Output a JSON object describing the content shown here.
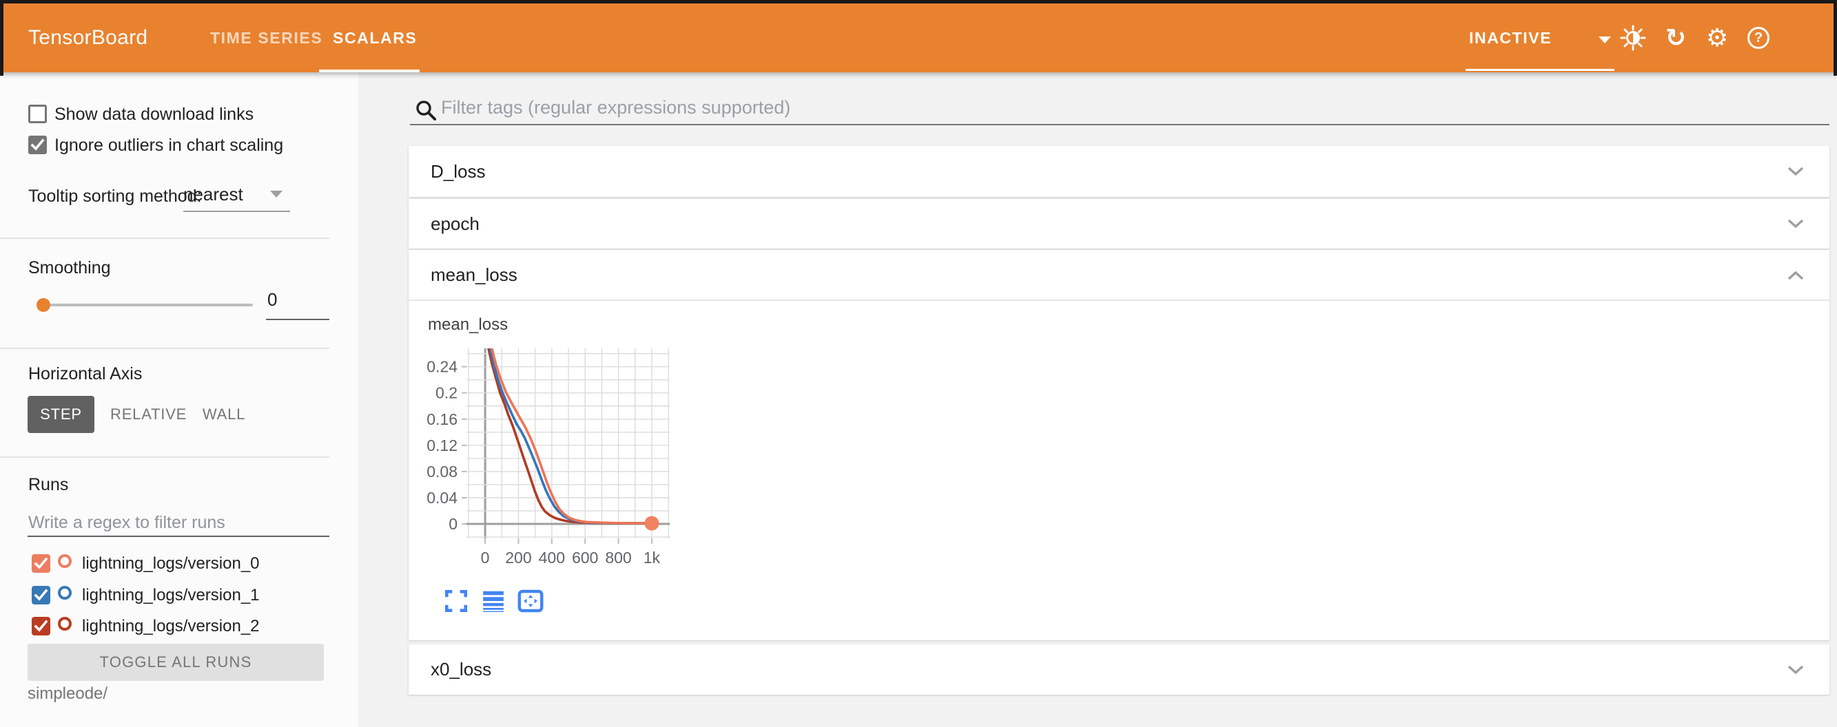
{
  "header": {
    "title": "TensorBoard",
    "tabs": [
      {
        "label": "TIME SERIES",
        "active": false
      },
      {
        "label": "SCALARS",
        "active": true
      }
    ],
    "run_status": "INACTIVE",
    "accent_color": "#e8822f",
    "icons": {
      "brightness": "half-filled-sun",
      "refresh": "circular-arrow",
      "settings": "gear",
      "settings_glyph": "⚙",
      "refresh_glyph": "↻",
      "help": "question-mark-circle",
      "help_glyph": "?"
    }
  },
  "sidebar": {
    "checkboxes": [
      {
        "label": "Show data download links",
        "checked": false
      },
      {
        "label": "Ignore outliers in chart scaling",
        "checked": true
      }
    ],
    "tooltip_sorting": {
      "label": "Tooltip sorting method:",
      "value": "nearest"
    },
    "smoothing": {
      "label": "Smoothing",
      "value": "0"
    },
    "horizontal_axis": {
      "label": "Horizontal Axis",
      "options": [
        "STEP",
        "RELATIVE",
        "WALL"
      ],
      "selected": "STEP"
    },
    "runs": {
      "label": "Runs",
      "filter_placeholder": "Write a regex to filter runs",
      "items": [
        {
          "label": "lightning_logs/version_0",
          "color": "#ee7d60",
          "checked": true
        },
        {
          "label": "lightning_logs/version_1",
          "color": "#3779b5",
          "checked": true
        },
        {
          "label": "lightning_logs/version_2",
          "color": "#b93d22",
          "checked": true
        }
      ],
      "toggle_all_label": "TOGGLE ALL RUNS",
      "footer": "simpleode/"
    }
  },
  "main": {
    "filter_placeholder": "Filter tags (regular expressions supported)",
    "sections": [
      {
        "label": "D_loss",
        "expanded": false
      },
      {
        "label": "epoch",
        "expanded": false
      },
      {
        "label": "mean_loss",
        "expanded": true
      },
      {
        "label": "x0_loss",
        "expanded": false
      }
    ]
  },
  "chart_data": {
    "type": "line",
    "title": "mean_loss",
    "x_axis": "step",
    "xlim": [
      -112,
      1108
    ],
    "ylim": [
      -0.022,
      0.268
    ],
    "x_grid_step": 100,
    "y_grid_step": 0.02,
    "grid": true,
    "legend": "none",
    "x_ticks": [
      {
        "v": 0,
        "label": "0"
      },
      {
        "v": 200,
        "label": "200"
      },
      {
        "v": 400,
        "label": "400"
      },
      {
        "v": 600,
        "label": "600"
      },
      {
        "v": 800,
        "label": "800"
      },
      {
        "v": 1000,
        "label": "1k"
      }
    ],
    "y_ticks": [
      {
        "v": 0,
        "label": "0"
      },
      {
        "v": 0.04,
        "label": "0.04"
      },
      {
        "v": 0.08,
        "label": "0.08"
      },
      {
        "v": 0.12,
        "label": "0.12"
      },
      {
        "v": 0.16,
        "label": "0.16"
      },
      {
        "v": 0.2,
        "label": "0.2"
      },
      {
        "v": 0.24,
        "label": "0.24"
      }
    ],
    "series": [
      {
        "name": "lightning_logs/version_2",
        "color": "#b23a22",
        "points": [
          [
            20,
            0.268
          ],
          [
            40,
            0.245
          ],
          [
            65,
            0.222
          ],
          [
            90,
            0.2
          ],
          [
            115,
            0.184
          ],
          [
            140,
            0.166
          ],
          [
            165,
            0.15
          ],
          [
            195,
            0.128
          ],
          [
            225,
            0.105
          ],
          [
            255,
            0.083
          ],
          [
            280,
            0.064
          ],
          [
            300,
            0.049
          ],
          [
            320,
            0.036
          ],
          [
            340,
            0.026
          ],
          [
            360,
            0.019
          ],
          [
            390,
            0.013
          ],
          [
            420,
            0.009
          ],
          [
            460,
            0.006
          ],
          [
            500,
            0.004
          ],
          [
            560,
            0.0025
          ],
          [
            650,
            0.0015
          ],
          [
            800,
            0.001
          ],
          [
            1000,
            0.001
          ]
        ]
      },
      {
        "name": "lightning_logs/version_1",
        "color": "#3575bd",
        "points": [
          [
            30,
            0.268
          ],
          [
            55,
            0.24
          ],
          [
            80,
            0.218
          ],
          [
            105,
            0.2
          ],
          [
            130,
            0.185
          ],
          [
            160,
            0.168
          ],
          [
            190,
            0.152
          ],
          [
            215,
            0.142
          ],
          [
            240,
            0.13
          ],
          [
            265,
            0.115
          ],
          [
            290,
            0.1
          ],
          [
            315,
            0.084
          ],
          [
            340,
            0.067
          ],
          [
            365,
            0.051
          ],
          [
            390,
            0.038
          ],
          [
            415,
            0.027
          ],
          [
            440,
            0.019
          ],
          [
            470,
            0.012
          ],
          [
            510,
            0.007
          ],
          [
            560,
            0.004
          ],
          [
            640,
            0.002
          ],
          [
            800,
            0.001
          ],
          [
            1000,
            0.001
          ]
        ]
      },
      {
        "name": "lightning_logs/version_0",
        "color": "#ef7456",
        "points": [
          [
            40,
            0.268
          ],
          [
            65,
            0.243
          ],
          [
            95,
            0.22
          ],
          [
            125,
            0.201
          ],
          [
            160,
            0.184
          ],
          [
            200,
            0.166
          ],
          [
            240,
            0.148
          ],
          [
            270,
            0.132
          ],
          [
            295,
            0.117
          ],
          [
            320,
            0.1
          ],
          [
            345,
            0.082
          ],
          [
            370,
            0.064
          ],
          [
            395,
            0.048
          ],
          [
            420,
            0.034
          ],
          [
            445,
            0.023
          ],
          [
            470,
            0.016
          ],
          [
            500,
            0.01
          ],
          [
            540,
            0.006
          ],
          [
            600,
            0.003
          ],
          [
            700,
            0.002
          ],
          [
            850,
            0.001
          ],
          [
            1000,
            0.001
          ]
        ]
      }
    ],
    "end_marker": {
      "series": "lightning_logs/version_0",
      "x": 1000,
      "y": 0.001,
      "color": "#f0825f"
    }
  }
}
